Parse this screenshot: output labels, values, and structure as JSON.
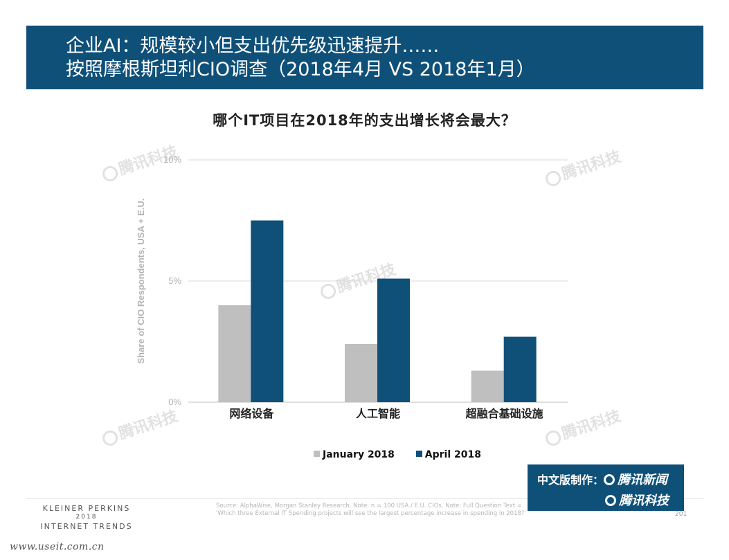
{
  "header": {
    "line1": "企业AI：规模较小但支出优先级迅速提升……",
    "line2": "按照摩根斯坦利CIO调查（2018年4月 VS 2018年1月）"
  },
  "chart_data": {
    "type": "bar",
    "title": "哪个IT项目在2018年的支出增长将会最大？",
    "categories": [
      "网络设备",
      "人工智能",
      "超融合基础设施"
    ],
    "series": [
      {
        "name": "January 2018",
        "color": "#bfbfbf",
        "values": [
          4.0,
          2.4,
          1.3
        ]
      },
      {
        "name": "April 2018",
        "color": "#0f5079",
        "values": [
          7.5,
          5.1,
          2.7
        ]
      }
    ],
    "ylabel": "Share of CIO Respondents, USA + E.U.",
    "ylim": [
      0,
      10
    ],
    "yticks": [
      0,
      5,
      10
    ],
    "ytick_labels": [
      "0%",
      "5%",
      "10%"
    ],
    "grid": true,
    "legend_position": "bottom"
  },
  "watermark": {
    "text": "腾讯科技"
  },
  "badge": {
    "prefix": "中文版制作：",
    "brand1": "腾讯新闻",
    "brand2": "腾讯科技"
  },
  "footer": {
    "kp_line1": "KLEINER PERKINS",
    "kp_line2": "2018",
    "kp_line3": "INTERNET TRENDS",
    "source_line1": "Source: AlphaWise, Morgan Stanley Research.  Note: n = 100 USA / E.U. CIOs.  Note: Full Question Text =",
    "source_line2": "'Which three External IT Spending projects will see the largest percentage increase in spending in 2018?'",
    "page": "201",
    "url": "www.useit.com.cn"
  }
}
